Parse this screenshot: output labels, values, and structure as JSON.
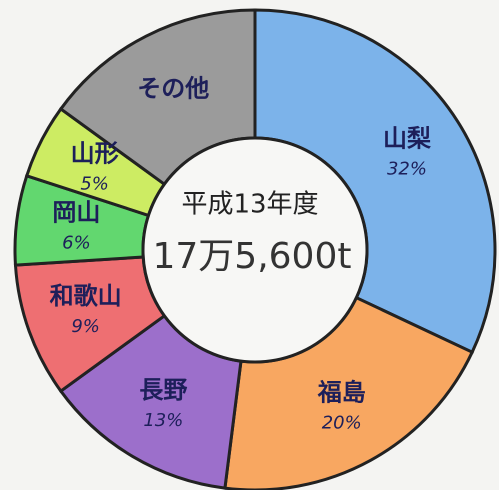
{
  "chart_data": {
    "type": "donut",
    "subtitle": "平成13年度",
    "total_label": "17万5,600t",
    "categories": [
      "山梨",
      "福島",
      "長野",
      "和歌山",
      "岡山",
      "山形",
      "その他"
    ],
    "values": [
      32,
      20,
      13,
      9,
      6,
      5,
      15
    ],
    "value_labels": [
      "32%",
      "20%",
      "13%",
      "9%",
      "6%",
      "5%",
      null
    ],
    "colors": [
      "#7cb3ea",
      "#f8a761",
      "#9c6fcb",
      "#ee6f72",
      "#62d76f",
      "#cdec63",
      "#9b9b9b"
    ]
  }
}
